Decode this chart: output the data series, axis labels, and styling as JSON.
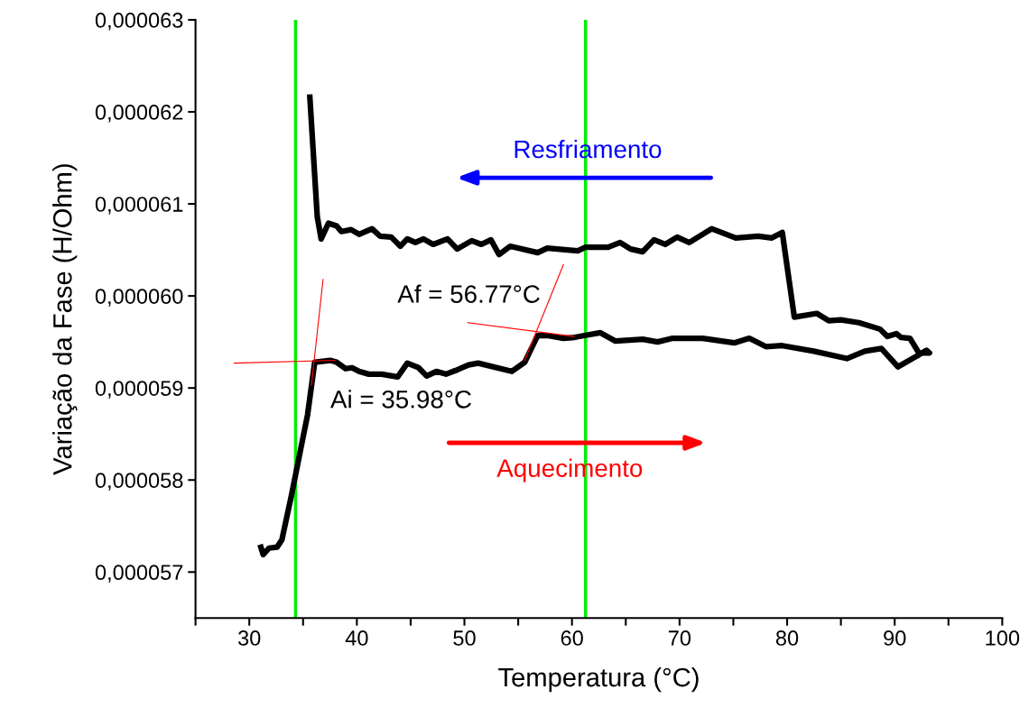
{
  "chart_data": {
    "type": "line",
    "xlabel": "Temperatura (°C)",
    "ylabel": "Variação da Fase (H/Ohm)",
    "xlim": [
      25,
      100
    ],
    "ylim": [
      5.65e-05,
      6.3e-05
    ],
    "xticks": [
      {
        "value": 25,
        "label": null
      },
      30,
      {
        "value": 35,
        "label": null
      },
      40,
      {
        "value": 45,
        "label": null
      },
      50,
      {
        "value": 55,
        "label": null
      },
      60,
      {
        "value": 65,
        "label": null
      },
      70,
      {
        "value": 75,
        "label": null
      },
      80,
      {
        "value": 85,
        "label": null
      },
      90,
      {
        "value": 95,
        "label": null
      },
      100
    ],
    "yticks": [
      {
        "value": 5.7e-05,
        "label": "0,000057"
      },
      {
        "value": 5.8e-05,
        "label": "0,000058"
      },
      {
        "value": 5.9e-05,
        "label": "0,000059"
      },
      {
        "value": 6e-05,
        "label": "0,000060"
      },
      {
        "value": 6.1e-05,
        "label": "0,000061"
      },
      {
        "value": 6.2e-05,
        "label": "0,000062"
      },
      {
        "value": 6.3e-05,
        "label": "0,000063"
      }
    ],
    "grid": false,
    "legend": false,
    "line_style": "solid",
    "marker": "none",
    "series": [
      {
        "color": "#000000",
        "x": [
          31.08,
          31.29,
          31.83,
          32.58,
          33.03,
          33.93,
          34.82,
          35.42,
          36.08,
          37.51,
          38.12,
          38.95,
          39.55,
          40.21,
          41.11,
          42.3,
          43.79,
          44.69,
          45.74,
          46.49,
          47.39,
          48.28,
          49.18,
          50.38,
          51.27,
          54.41,
          55.61,
          56.81,
          57.71,
          59.2,
          60.25,
          61.15,
          62.64,
          64.05,
          66.57,
          67.96,
          69.36,
          72.15,
          75.08,
          76.48,
          78.02,
          79.55,
          82.48,
          85.55,
          87.23,
          88.76,
          90.3,
          92.25,
          92.95,
          93.23,
          92.25,
          91.42,
          90.58,
          90.16,
          89.32,
          88.63,
          86.67,
          84.99,
          83.88,
          82.76,
          80.67,
          79.55,
          78.58,
          77.32,
          75.23,
          72.99,
          70.9,
          69.78,
          68.66,
          67.63,
          66.57,
          65.45,
          64.47,
          63.36,
          61.26,
          60.54,
          57.7,
          56.81,
          54.26,
          53.22,
          52.47,
          51.57,
          50.68,
          49.33,
          48.43,
          47.09,
          46.19,
          45.44,
          44.69,
          44.04,
          43.2,
          42.15,
          41.41,
          40.21,
          39.46,
          38.56,
          38.12,
          37.36,
          36.68,
          36.32,
          35.63
        ],
        "values": [
          5.727e-05,
          5.719e-05,
          5.726e-05,
          5.727e-05,
          5.735e-05,
          5.784e-05,
          5.836e-05,
          5.871e-05,
          5.928e-05,
          5.93e-05,
          5.928e-05,
          5.921e-05,
          5.922e-05,
          5.918e-05,
          5.915e-05,
          5.915e-05,
          5.912e-05,
          5.927e-05,
          5.922e-05,
          5.913e-05,
          5.918e-05,
          5.915e-05,
          5.919e-05,
          5.925e-05,
          5.927e-05,
          5.918e-05,
          5.928e-05,
          5.957e-05,
          5.957e-05,
          5.954e-05,
          5.955e-05,
          5.957e-05,
          5.96e-05,
          5.951e-05,
          5.953e-05,
          5.95e-05,
          5.954e-05,
          5.954e-05,
          5.949e-05,
          5.954e-05,
          5.945e-05,
          5.946e-05,
          5.94e-05,
          5.932e-05,
          5.94e-05,
          5.943e-05,
          5.923e-05,
          5.936e-05,
          5.941e-05,
          5.938e-05,
          5.938e-05,
          5.954e-05,
          5.955e-05,
          5.959e-05,
          5.956e-05,
          5.964e-05,
          5.971e-05,
          5.974e-05,
          5.973e-05,
          5.981e-05,
          5.977e-05,
          6.069e-05,
          6.063e-05,
          6.065e-05,
          6.063e-05,
          6.073e-05,
          6.058e-05,
          6.064e-05,
          6.056e-05,
          6.061e-05,
          6.048e-05,
          6.051e-05,
          6.058e-05,
          6.053e-05,
          6.053e-05,
          6.049e-05,
          6.052e-05,
          6.047e-05,
          6.054e-05,
          6.045e-05,
          6.061e-05,
          6.056e-05,
          6.06e-05,
          6.051e-05,
          6.062e-05,
          6.056e-05,
          6.062e-05,
          6.058e-05,
          6.062e-05,
          6.054e-05,
          6.064e-05,
          6.065e-05,
          6.073e-05,
          6.067e-05,
          6.072e-05,
          6.07e-05,
          6.076e-05,
          6.079e-05,
          6.062e-05,
          6.086e-05,
          6.216e-05
        ]
      },
      {
        "color": "#ff0000",
        "x": [
          28.6,
          37.98
        ],
        "values": [
          5.927e-05,
          5.93e-05
        ]
      },
      {
        "color": "#ff0000",
        "x": [
          36.86,
          35.78
        ],
        "values": [
          6.018e-05,
          5.903e-05
        ]
      },
      {
        "color": "#ff0000",
        "x": [
          50.32,
          60.18
        ],
        "values": [
          5.971e-05,
          5.956e-05
        ]
      },
      {
        "color": "#ff0000",
        "x": [
          59.2,
          55.61
        ],
        "values": [
          6.034e-05,
          5.93e-05
        ]
      }
    ],
    "ref_lines": [
      {
        "axis": "x",
        "value": 34.3,
        "color": "#00ee00"
      },
      {
        "axis": "x",
        "value": 61.26,
        "color": "#00ee00"
      }
    ],
    "annotations": [
      "Af = 56.77°C",
      "Ai = 35.98°C",
      "Resfriamento",
      "Aquecimento"
    ]
  }
}
